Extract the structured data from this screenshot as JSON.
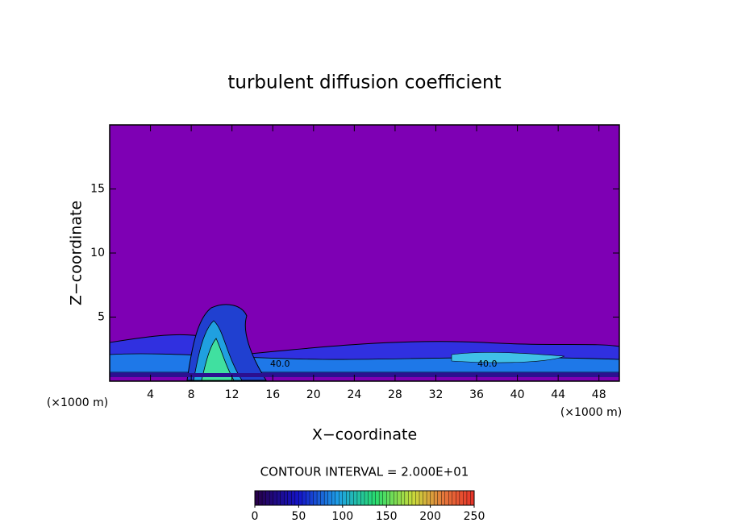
{
  "chart_data": {
    "type": "contour",
    "title": "turbulent diffusion coefficient",
    "xlabel": "X−coordinate",
    "ylabel": "Z−coordinate",
    "x_unit_label": "(×1000 m)",
    "x_unit_label_right": "(×1000 m)",
    "xlim": [
      0,
      50
    ],
    "ylim": [
      0,
      20
    ],
    "xticks": [
      4,
      8,
      12,
      16,
      20,
      24,
      28,
      32,
      36,
      40,
      44,
      48
    ],
    "yticks": [
      5,
      10,
      15
    ],
    "background_color": "#7e00b4",
    "contour_labels": [
      "40.0",
      "40.0"
    ],
    "contour_interval": "CONTOUR INTERVAL = 2.000E+01",
    "colorbar": {
      "lim": [
        0,
        250
      ],
      "ticks": [
        0,
        50,
        100,
        150,
        200,
        250
      ]
    }
  }
}
